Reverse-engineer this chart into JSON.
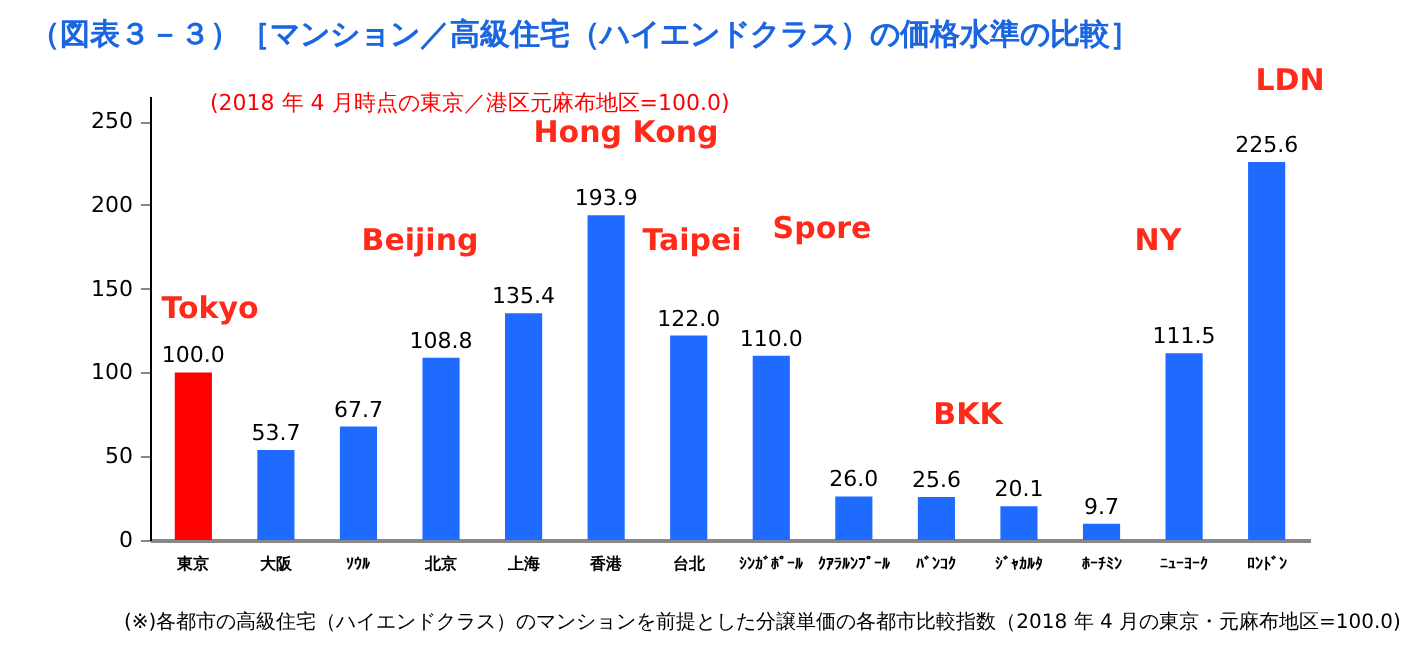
{
  "chart_data": {
    "type": "bar",
    "title": "（図表３－３）［マンション／高級住宅（ハイエンドクラス）の価格水準の比較］",
    "categories": [
      "東京",
      "大阪",
      "ｿｳﾙ",
      "北京",
      "上海",
      "香港",
      "台北",
      "ｼﾝｶﾞﾎﾟｰﾙ",
      "ｸｱﾗﾙﾝﾌﾟｰﾙ",
      "ﾊﾞﾝｺｸ",
      "ｼﾞｬｶﾙﾀ",
      "ﾎｰﾁﾐﾝ",
      "ﾆｭｰﾖｰｸ",
      "ﾛﾝﾄﾞﾝ"
    ],
    "values": [
      100.0,
      53.7,
      67.7,
      108.8,
      135.4,
      193.9,
      122.0,
      110.0,
      26.0,
      25.6,
      20.1,
      9.7,
      111.5,
      225.6
    ],
    "value_labels": [
      "100.0",
      "53.7",
      "67.7",
      "108.8",
      "135.4",
      "193.9",
      "122.0",
      "110.0",
      "26.0",
      "25.6",
      "20.1",
      "9.7",
      "111.5",
      "225.6"
    ],
    "colors": [
      "#ff0000",
      "#1f6bff",
      "#1f6bff",
      "#1f6bff",
      "#1f6bff",
      "#1f6bff",
      "#1f6bff",
      "#1f6bff",
      "#1f6bff",
      "#1f6bff",
      "#1f6bff",
      "#1f6bff",
      "#1f6bff",
      "#1f6bff"
    ],
    "ylim": [
      0,
      265
    ],
    "yticks": [
      0,
      50,
      100,
      150,
      200,
      250
    ],
    "grid": false,
    "annotations": [
      "(2018 年 4 月時点の東京／港区元麻布地区=100.0)",
      "Tokyo",
      "Beijing",
      "Hong Kong",
      "Taipei",
      "Spore",
      "BKK",
      "NY",
      "LDN",
      "(※)各都市の高級住宅（ハイエンドクラス）のマンションを前提とした分譲単価の各都市比較指数（2018 年 4 月の東京・元麻布地区=100.0)"
    ]
  }
}
